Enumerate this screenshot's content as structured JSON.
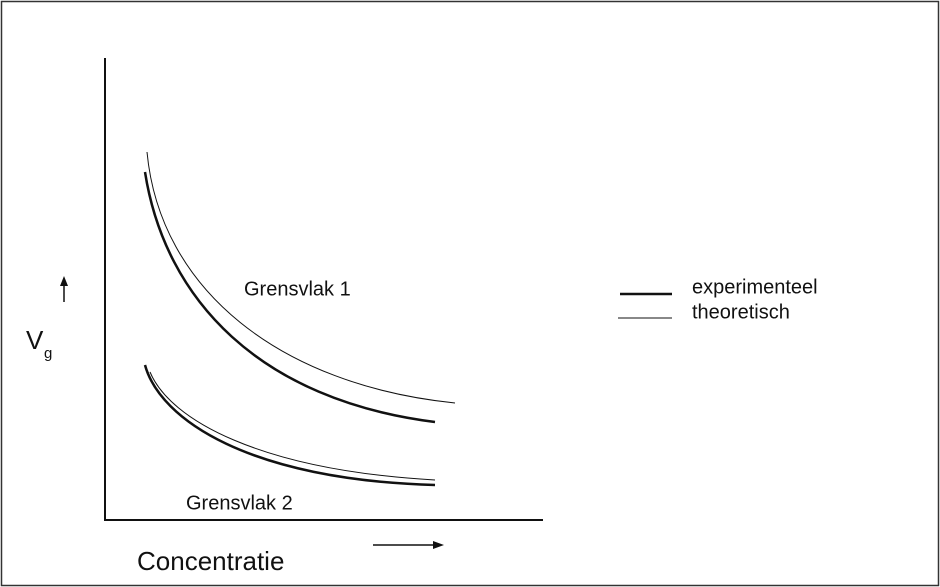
{
  "axes": {
    "y_label": "V",
    "y_label_subscript": "g",
    "x_label": "Concentratie"
  },
  "annotations": [
    "Grensvlak 1",
    "Grensvlak 2"
  ],
  "legend": [
    "experimenteel",
    "theoretisch"
  ]
}
